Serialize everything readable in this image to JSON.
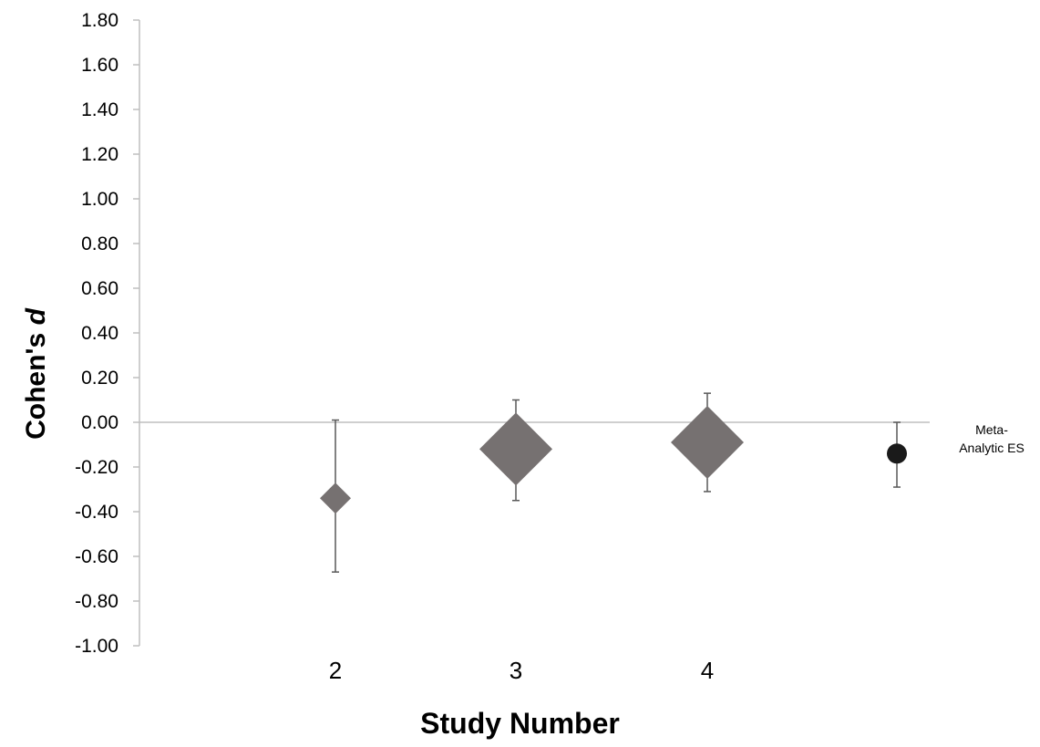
{
  "chart_data": {
    "type": "scatter",
    "title": "",
    "xlabel": "Study Number",
    "ylabel_main": "Cohen's ",
    "ylabel_italic": "d",
    "ylim": [
      -1.0,
      1.8
    ],
    "yticks": [
      "1.80",
      "1.60",
      "1.40",
      "1.20",
      "1.00",
      "0.80",
      "0.60",
      "0.40",
      "0.20",
      "0.00",
      "-0.20",
      "-0.40",
      "-0.60",
      "-0.80",
      "-1.00"
    ],
    "grid": false,
    "points": [
      {
        "label": "2",
        "d": -0.34,
        "ci_low": -0.67,
        "ci_high": 0.01,
        "marker": "diamond",
        "size": "small",
        "color": "#767171"
      },
      {
        "label": "3",
        "d": -0.12,
        "ci_low": -0.35,
        "ci_high": 0.1,
        "marker": "diamond",
        "size": "large",
        "color": "#767171"
      },
      {
        "label": "4",
        "d": -0.09,
        "ci_low": -0.31,
        "ci_high": 0.13,
        "marker": "diamond",
        "size": "large",
        "color": "#767171"
      },
      {
        "label": "",
        "d": -0.14,
        "ci_low": -0.29,
        "ci_high": 0.0,
        "marker": "circle",
        "size": "small",
        "color": "#1a1a1a"
      }
    ],
    "annotation": {
      "line1": "Meta-",
      "line2": "Analytic ES"
    }
  }
}
